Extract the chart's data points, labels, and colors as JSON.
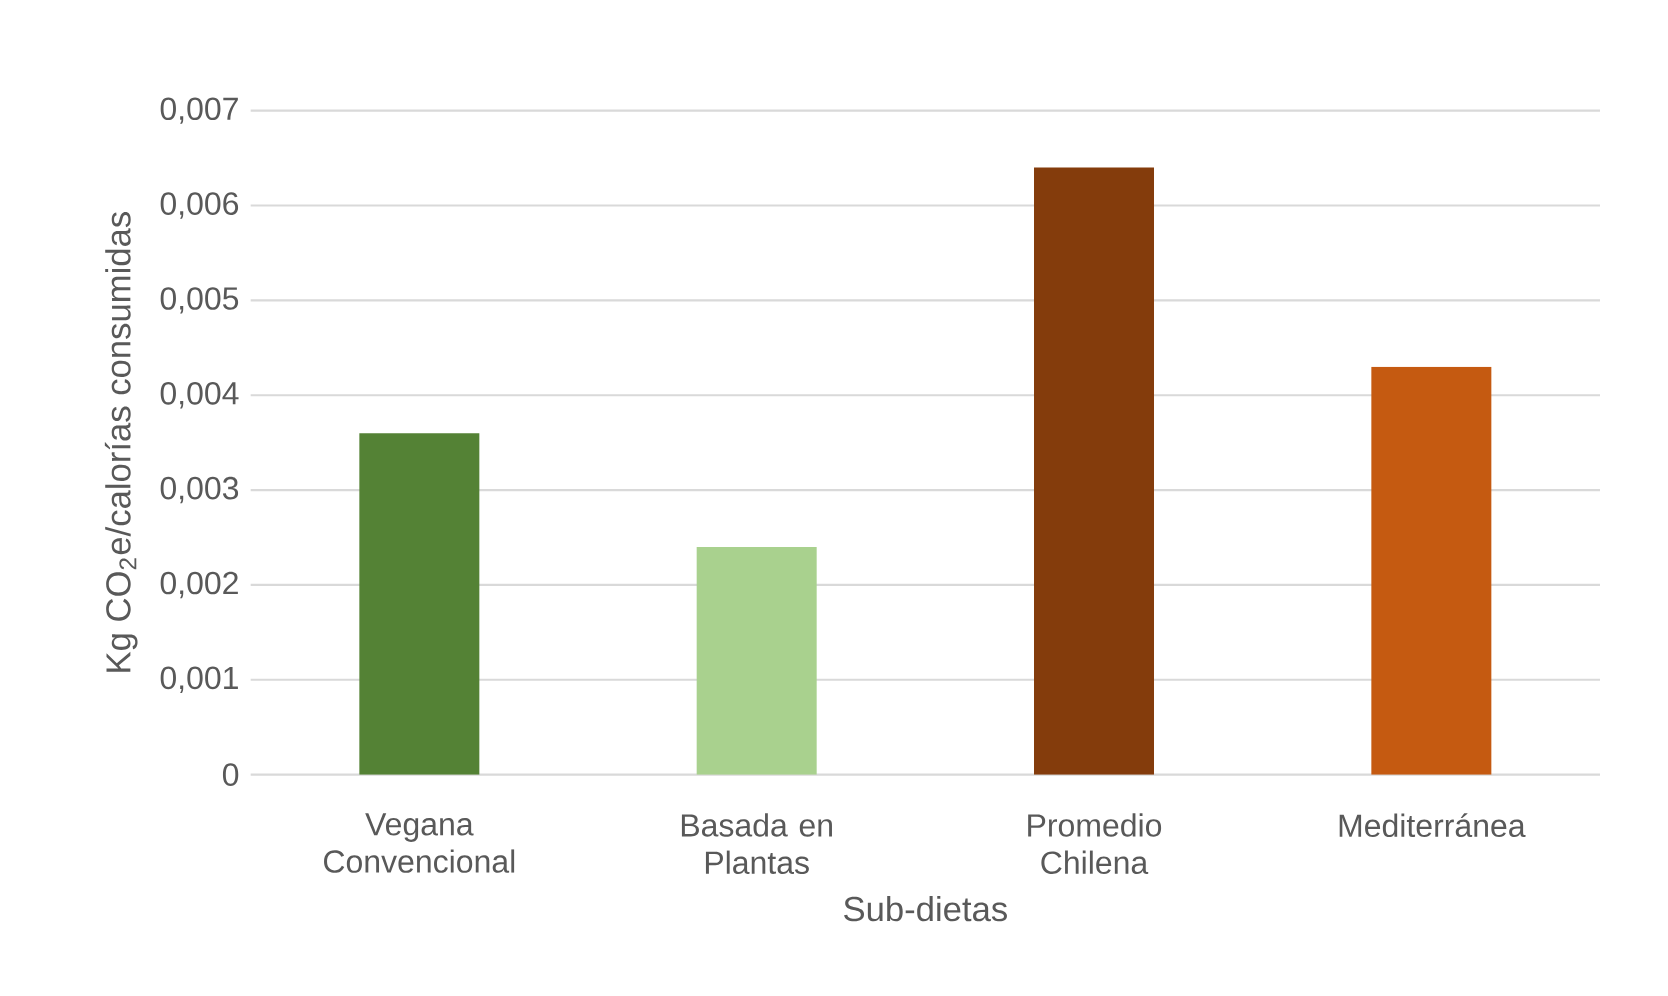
{
  "chart_data": {
    "type": "bar",
    "xlabel": "Sub-dietas",
    "ylabel": "Kg CO$_{2}$e/calorías consumidas",
    "categories": [
      "Vegana Convencional",
      "Basada en Plantas",
      "Promedio Chilena",
      "Mediterránea"
    ],
    "values": [
      0.0036,
      0.0024,
      0.0064,
      0.0043
    ],
    "colors": [
      "#548235",
      "#a9d18e",
      "#843c0c",
      "#c55a11"
    ],
    "ylim": [
      0,
      0.007
    ],
    "yticks": [
      0,
      {
        "value": 0.001,
        "label": "0,001"
      },
      {
        "value": 0.002,
        "label": "0,002"
      },
      {
        "value": 0.003,
        "label": "0,003"
      },
      {
        "value": 0.004,
        "label": "0,004"
      },
      {
        "value": 0.005,
        "label": "0,005"
      },
      {
        "value": 0.006,
        "label": "0,006"
      },
      {
        "value": 0.007,
        "label": "0,007"
      }
    ],
    "grid": "y"
  }
}
